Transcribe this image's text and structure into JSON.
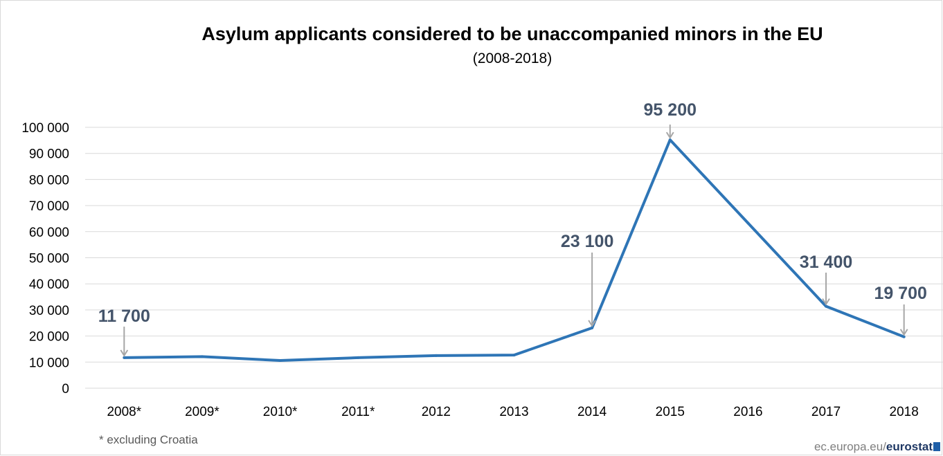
{
  "chart_data": {
    "type": "line",
    "title": "Asylum applicants considered to be unaccompanied minors in the EU",
    "subtitle": "(2008-2018)",
    "categories": [
      "2008*",
      "2009*",
      "2010*",
      "2011*",
      "2012",
      "2013",
      "2014",
      "2015",
      "2016",
      "2017",
      "2018"
    ],
    "series": [
      {
        "values": [
          11700,
          12100,
          10600,
          11700,
          12500,
          12700,
          23100,
          95200,
          63300,
          31400,
          19700
        ]
      }
    ],
    "ylim": [
      0,
      100000
    ],
    "yticks": [
      0,
      10000,
      20000,
      30000,
      40000,
      50000,
      60000,
      70000,
      80000,
      90000,
      100000
    ],
    "ytick_labels": [
      "0",
      "10 000",
      "20 000",
      "30 000",
      "40 000",
      "50 000",
      "60 000",
      "70 000",
      "80 000",
      "90 000",
      "100 000"
    ],
    "annotations": [
      {
        "category": "2008*",
        "value": 11700,
        "label": "11 700"
      },
      {
        "category": "2014",
        "value": 23100,
        "label": "23 100"
      },
      {
        "category": "2015",
        "value": 95200,
        "label": "95 200"
      },
      {
        "category": "2017",
        "value": 31400,
        "label": "31 400"
      },
      {
        "category": "2018",
        "value": 19700,
        "label": "19 700"
      }
    ],
    "grid": true,
    "line_color": "#2e75b6",
    "annotation_color": "#44546a",
    "arrow_color": "#a6a6a6"
  },
  "footnote": "* excluding Croatia",
  "source": {
    "prefix": "ec.europa.eu/",
    "brand": "eurostat"
  }
}
